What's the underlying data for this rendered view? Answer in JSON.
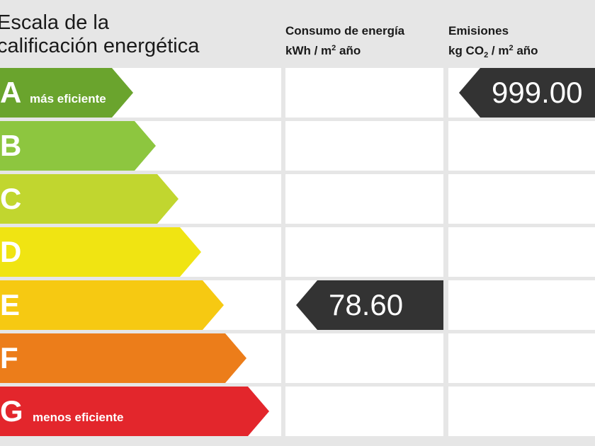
{
  "header": {
    "title_line1": "Escala de la",
    "title_line2": "calificación energética",
    "consumo_line1": "Consumo de energía",
    "consumo_unit_a": "kWh / m",
    "consumo_unit_sup": "2",
    "consumo_unit_b": " año",
    "emisiones_line1": "Emisiones",
    "emisiones_unit_a": "kg CO",
    "emisiones_unit_sub": "2",
    "emisiones_unit_b": " / m",
    "emisiones_unit_sup": "2",
    "emisiones_unit_c": " año"
  },
  "scale": [
    {
      "letter": "A",
      "note": "más eficiente",
      "color": "#6aa42d"
    },
    {
      "letter": "B",
      "note": "",
      "color": "#8dc63f"
    },
    {
      "letter": "C",
      "note": "",
      "color": "#c1d62f"
    },
    {
      "letter": "D",
      "note": "",
      "color": "#f0e412"
    },
    {
      "letter": "E",
      "note": "",
      "color": "#f6c912"
    },
    {
      "letter": "F",
      "note": "",
      "color": "#ec7d1a"
    },
    {
      "letter": "G",
      "note": "menos eficiente",
      "color": "#e3262c"
    }
  ],
  "consumo": {
    "rating": "E",
    "value": "78.60"
  },
  "emisiones": {
    "rating": "A",
    "value": "999.00"
  },
  "pointer_color": "#333333"
}
